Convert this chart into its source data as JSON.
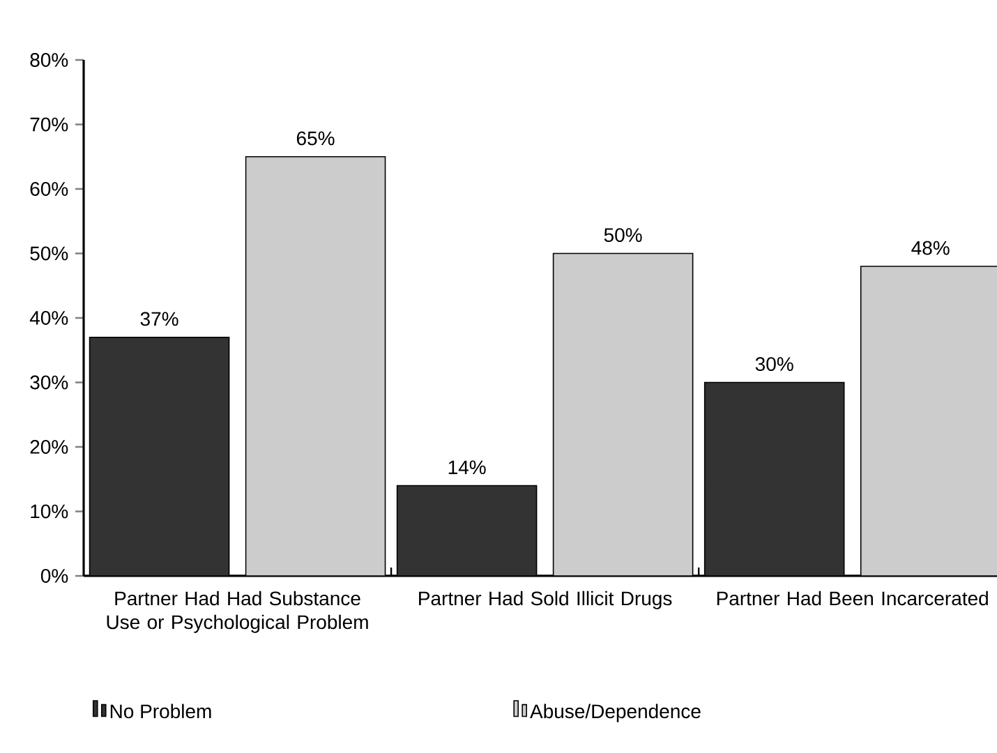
{
  "chart_data": {
    "type": "bar",
    "categories": [
      "Partner Had Had Substance Use or Psychological Problem",
      "Partner Had Sold Illicit Drugs",
      "Partner Had Been Incarcerated"
    ],
    "series": [
      {
        "name": "No Problem",
        "color": "#333333",
        "values": [
          37,
          14,
          30
        ],
        "value_labels": [
          "37%",
          "14%",
          "30%"
        ]
      },
      {
        "name": "Abuse/Dependence",
        "color": "#cccccc",
        "values": [
          65,
          50,
          48
        ],
        "value_labels": [
          "65%",
          "50%",
          "48%"
        ]
      }
    ],
    "ylim": [
      0,
      80
    ],
    "yticks": [
      {
        "value": 0,
        "label": "0%"
      },
      {
        "value": 10,
        "label": "10%"
      },
      {
        "value": 20,
        "label": "20%"
      },
      {
        "value": 30,
        "label": "30%"
      },
      {
        "value": 40,
        "label": "40%"
      },
      {
        "value": 50,
        "label": "50%"
      },
      {
        "value": 60,
        "label": "60%"
      },
      {
        "value": 70,
        "label": "70%"
      },
      {
        "value": 80,
        "label": "80%"
      }
    ],
    "legend": "bottom"
  }
}
